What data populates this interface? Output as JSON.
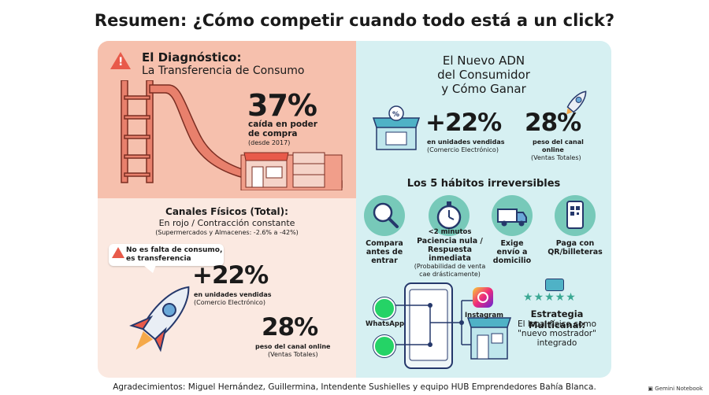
{
  "title": "Resumen: ¿Cómo competir cuando todo está a un click?",
  "left": {
    "diagnostico_title": "El Diagnóstico:",
    "diagnostico_subtitle": "La Transferencia de Consumo",
    "stat_pct": "37%",
    "stat_line1": "caída en poder",
    "stat_line2": "de compra",
    "stat_note": "(desde 2017)",
    "canales_title": "Canales Físicos (Total):",
    "canales_line": "En rojo / Contracción constante",
    "canales_note": "(Supermercados y Almacenes: -2.6% a -42%)",
    "bubble_line1": "No es falta de consumo,",
    "bubble_line2": "es transferencia",
    "stat2_value": "+22%",
    "stat2_line": "en unidades vendidas",
    "stat2_note": "(Comercio Electrónico)",
    "stat3_value": "28%",
    "stat3_line": "peso del canal online",
    "stat3_note": "(Ventas Totales)"
  },
  "right": {
    "adn_line1": "El Nuevo ADN",
    "adn_line2": "del Consumidor",
    "adn_line3": "y Cómo Ganar",
    "stat1_value": "+22%",
    "stat1_line": "en unidades vendidas",
    "stat1_note": "(Comercio Electrónico)",
    "stat2_value": "28%",
    "stat2_line1": "peso del canal",
    "stat2_line2": "online",
    "stat2_note": "(Ventas Totales)",
    "habits_title": "Los 5 hábitos irreversibles",
    "habits": [
      {
        "line1": "Compara",
        "line2": "antes de",
        "line3": "entrar",
        "icon": "magnifier-icon"
      },
      {
        "tag": "<2 minutos",
        "line1": "Paciencia nula /",
        "line2": "Respuesta inmediata",
        "note1": "(Probabilidad de venta",
        "note2": "cae drásticamente)",
        "icon": "stopwatch-icon"
      },
      {
        "line1": "Exige",
        "line2": "envío a",
        "line3": "domicilio",
        "icon": "truck-icon"
      },
      {
        "line1": "Paga con",
        "line2": "QR/billeteras",
        "icon": "qr-phone-icon"
      }
    ],
    "whatsapp_label": "WhatsApp",
    "instagram_label": "Instagram",
    "multi_title": "Estrategia Multicanal:",
    "multi_line1": "El local físico como",
    "multi_line2": "\"nuevo mostrador\"",
    "multi_line3": "integrado"
  },
  "footer": "Agradecimientos: Miguel Hernández, Guillermina, Intendente Sushielles y equipo HUB Emprendedores Bahía Blanca.",
  "badge": "Gemini Notebook",
  "colors": {
    "coral": "#e85a4a",
    "salmon": "#f6c0ad",
    "teal": "#77c9b9",
    "mint": "#d6f0f2",
    "navy": "#25386b"
  }
}
